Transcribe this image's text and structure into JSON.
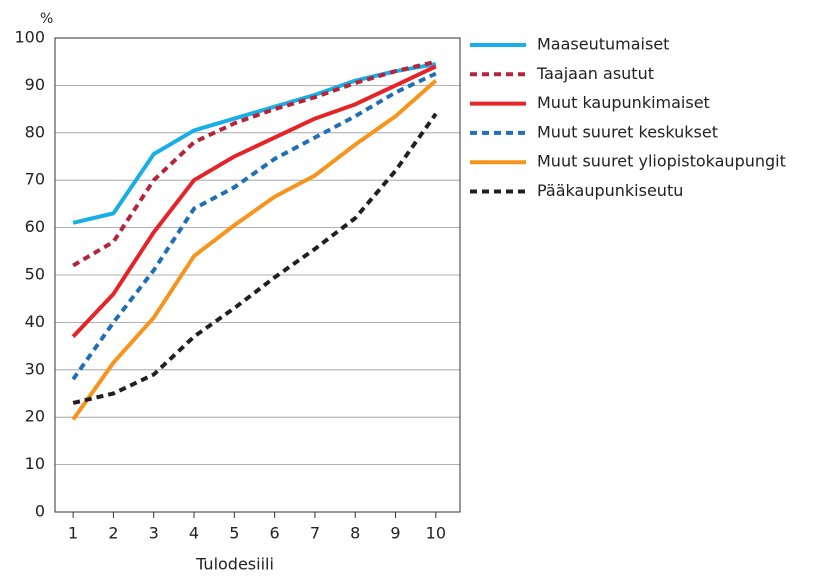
{
  "chart_data": {
    "type": "line",
    "y_label": "%",
    "x_label": "Tulodesiili",
    "x": [
      1,
      2,
      3,
      4,
      5,
      6,
      7,
      8,
      9,
      10
    ],
    "xlim": [
      0.55,
      10.6
    ],
    "xticks": [
      1,
      2,
      3,
      4,
      5,
      6,
      7,
      8,
      9,
      10
    ],
    "ylim": [
      0,
      100
    ],
    "yticks": [
      0,
      10,
      20,
      30,
      40,
      50,
      60,
      70,
      80,
      90,
      100
    ],
    "grid": true,
    "legend": "right",
    "series": [
      {
        "name": "Maaseutumaiset",
        "color": "#1aaee6",
        "dashed": false,
        "values": [
          61,
          63,
          75.5,
          80.5,
          83,
          85.5,
          88,
          91,
          93,
          94.5
        ]
      },
      {
        "name": "Taajaan asutut",
        "color": "#b5253a",
        "dashed": true,
        "values": [
          52,
          57,
          70,
          78,
          82,
          85,
          87.5,
          90.5,
          93,
          95
        ]
      },
      {
        "name": "Muut kaupunkimaiset",
        "color": "#e42429",
        "dashed": false,
        "values": [
          37,
          46,
          59,
          70,
          75,
          79,
          83,
          86,
          90,
          94
        ]
      },
      {
        "name": "Muut suuret keskukset",
        "color": "#1f6fb6",
        "dashed": true,
        "values": [
          28,
          40,
          51,
          64,
          68.5,
          74.5,
          79,
          83.5,
          88.5,
          92.5
        ]
      },
      {
        "name": "Muut suuret yliopistokaupungit",
        "color": "#f7941d",
        "dashed": false,
        "values": [
          19.5,
          31.5,
          41,
          54,
          60.5,
          66.5,
          71,
          77.5,
          83.5,
          91
        ]
      },
      {
        "name": "Pääkaupunkiseutu",
        "color": "#231f20",
        "dashed": true,
        "values": [
          23,
          25,
          29,
          37,
          43,
          49.5,
          55.5,
          62,
          72,
          84
        ]
      }
    ]
  }
}
